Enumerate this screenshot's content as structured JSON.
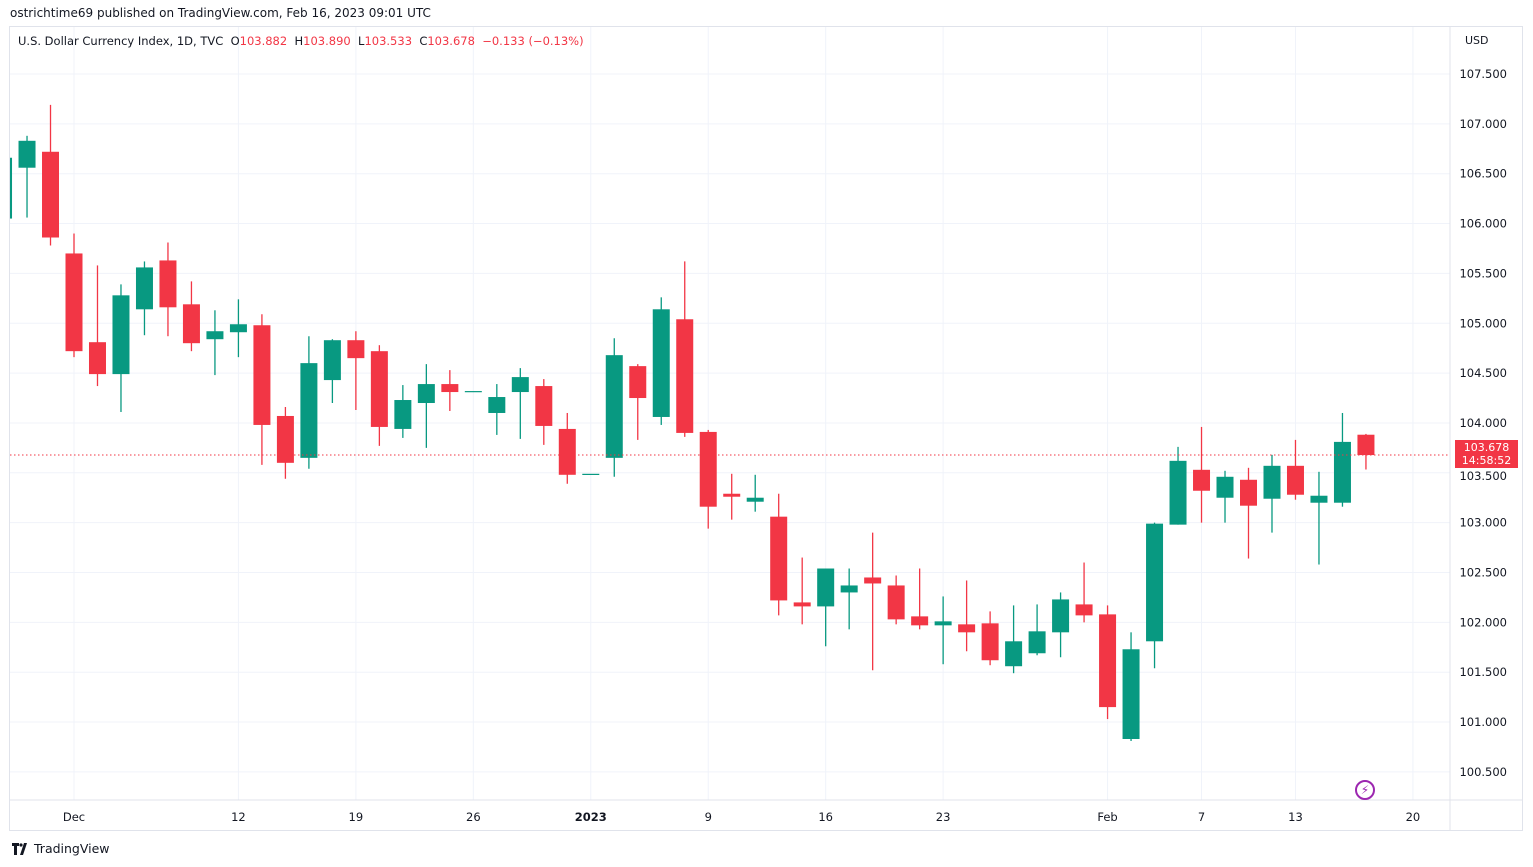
{
  "header": {
    "published": "ostrichtime69 published on TradingView.com, Feb 16, 2023 09:01 UTC"
  },
  "legend": {
    "symbol": "U.S. Dollar Currency Index, 1D, TVC",
    "o_label": "O",
    "o": "103.882",
    "h_label": "H",
    "h": "103.890",
    "l_label": "L",
    "l": "103.533",
    "c_label": "C",
    "c": "103.678",
    "change": "−0.133 (−0.13%)"
  },
  "currency": "USD",
  "last_price": {
    "value": "103.678",
    "countdown": "14:58:52"
  },
  "footer": {
    "logo_text": "TradingView"
  },
  "colors": {
    "up": "#089981",
    "down": "#F23645",
    "grid": "#f0f3fa",
    "alert": "#9c27b0"
  },
  "icons": {
    "alert": "lightning-icon",
    "logo": "tradingview-logo-icon"
  },
  "chart_data": {
    "type": "candlestick",
    "ylim": [
      100.3,
      107.75
    ],
    "y_ticks": [
      "107.500",
      "107.000",
      "106.500",
      "106.000",
      "105.500",
      "105.000",
      "104.500",
      "104.000",
      "103.500",
      "103.000",
      "102.500",
      "102.000",
      "101.500",
      "101.000",
      "100.500"
    ],
    "x_ticks": [
      {
        "label": "Dec",
        "day": 3,
        "bold": false
      },
      {
        "label": "12",
        "day": 10,
        "bold": false
      },
      {
        "label": "19",
        "day": 15,
        "bold": false
      },
      {
        "label": "26",
        "day": 20,
        "bold": false
      },
      {
        "label": "2023",
        "day": 25,
        "bold": true
      },
      {
        "label": "9",
        "day": 30,
        "bold": false
      },
      {
        "label": "16",
        "day": 35,
        "bold": false
      },
      {
        "label": "23",
        "day": 40,
        "bold": false
      },
      {
        "label": "Feb",
        "day": 47,
        "bold": false
      },
      {
        "label": "7",
        "day": 51,
        "bold": false
      },
      {
        "label": "13",
        "day": 55,
        "bold": false
      },
      {
        "label": "20",
        "day": 60,
        "bold": false
      }
    ],
    "columns": [
      "date",
      "open",
      "high",
      "low",
      "close"
    ],
    "candles": [
      [
        "2022-11-28",
        106.05,
        106.7,
        106.05,
        106.66
      ],
      [
        "2022-11-29",
        106.56,
        106.88,
        106.06,
        106.83
      ],
      [
        "2022-11-30",
        106.72,
        107.19,
        105.78,
        105.86
      ],
      [
        "2022-12-01",
        105.7,
        105.9,
        104.66,
        104.72
      ],
      [
        "2022-12-02",
        104.81,
        105.58,
        104.37,
        104.49
      ],
      [
        "2022-12-05",
        104.49,
        105.39,
        104.11,
        105.28
      ],
      [
        "2022-12-06",
        105.14,
        105.62,
        104.88,
        105.56
      ],
      [
        "2022-12-07",
        105.63,
        105.81,
        104.87,
        105.16
      ],
      [
        "2022-12-08",
        105.19,
        105.42,
        104.72,
        104.8
      ],
      [
        "2022-12-09",
        104.84,
        105.13,
        104.48,
        104.92
      ],
      [
        "2022-12-12",
        104.91,
        105.24,
        104.66,
        104.99
      ],
      [
        "2022-12-13",
        104.98,
        105.09,
        103.58,
        103.98
      ],
      [
        "2022-12-14",
        104.07,
        104.16,
        103.44,
        103.6
      ],
      [
        "2022-12-15",
        103.65,
        104.87,
        103.54,
        104.6
      ],
      [
        "2022-12-16",
        104.43,
        104.84,
        104.2,
        104.83
      ],
      [
        "2022-12-19",
        104.83,
        104.92,
        104.13,
        104.65
      ],
      [
        "2022-12-20",
        104.72,
        104.78,
        103.77,
        103.96
      ],
      [
        "2022-12-21",
        103.94,
        104.38,
        103.85,
        104.23
      ],
      [
        "2022-12-22",
        104.2,
        104.59,
        103.75,
        104.39
      ],
      [
        "2022-12-23",
        104.39,
        104.53,
        104.12,
        104.31
      ],
      [
        "2022-12-26",
        104.32,
        104.32,
        104.32,
        104.32
      ],
      [
        "2022-12-27",
        104.1,
        104.39,
        103.88,
        104.26
      ],
      [
        "2022-12-28",
        104.31,
        104.55,
        103.84,
        104.46
      ],
      [
        "2022-12-29",
        104.37,
        104.44,
        103.78,
        103.97
      ],
      [
        "2022-12-30",
        103.94,
        104.1,
        103.39,
        103.48
      ],
      [
        "2023-01-02",
        103.49,
        103.49,
        103.49,
        103.49
      ],
      [
        "2023-01-03",
        103.65,
        104.85,
        103.46,
        104.68
      ],
      [
        "2023-01-04",
        104.57,
        104.59,
        103.83,
        104.25
      ],
      [
        "2023-01-05",
        104.06,
        105.26,
        103.98,
        105.14
      ],
      [
        "2023-01-06",
        105.04,
        105.62,
        103.86,
        103.9
      ],
      [
        "2023-01-09",
        103.91,
        103.93,
        102.94,
        103.16
      ],
      [
        "2023-01-10",
        103.29,
        103.49,
        103.03,
        103.26
      ],
      [
        "2023-01-11",
        103.21,
        103.48,
        103.11,
        103.25
      ],
      [
        "2023-01-12",
        103.06,
        103.29,
        102.07,
        102.22
      ],
      [
        "2023-01-13",
        102.2,
        102.65,
        101.98,
        102.16
      ],
      [
        "2023-01-16",
        102.16,
        102.54,
        101.76,
        102.54
      ],
      [
        "2023-01-17",
        102.3,
        102.54,
        101.93,
        102.37
      ],
      [
        "2023-01-18",
        102.45,
        102.9,
        101.52,
        102.39
      ],
      [
        "2023-01-19",
        102.37,
        102.47,
        101.98,
        102.03
      ],
      [
        "2023-01-20",
        102.06,
        102.54,
        101.93,
        101.97
      ],
      [
        "2023-01-23",
        101.97,
        102.26,
        101.58,
        102.01
      ],
      [
        "2023-01-24",
        101.98,
        102.42,
        101.71,
        101.9
      ],
      [
        "2023-01-25",
        101.99,
        102.11,
        101.57,
        101.62
      ],
      [
        "2023-01-26",
        101.56,
        102.17,
        101.49,
        101.81
      ],
      [
        "2023-01-27",
        101.69,
        102.18,
        101.67,
        101.91
      ],
      [
        "2023-01-30",
        101.9,
        102.3,
        101.65,
        102.23
      ],
      [
        "2023-01-31",
        102.18,
        102.6,
        102.0,
        102.07
      ],
      [
        "2023-02-01",
        102.08,
        102.17,
        101.03,
        101.15
      ],
      [
        "2023-02-02",
        100.83,
        101.9,
        100.81,
        101.73
      ],
      [
        "2023-02-03",
        101.81,
        103.0,
        101.54,
        102.99
      ],
      [
        "2023-02-06",
        102.98,
        103.76,
        102.98,
        103.62
      ],
      [
        "2023-02-07",
        103.53,
        103.96,
        103.0,
        103.32
      ],
      [
        "2023-02-08",
        103.25,
        103.52,
        103.0,
        103.46
      ],
      [
        "2023-02-09",
        103.43,
        103.55,
        102.64,
        103.17
      ],
      [
        "2023-02-10",
        103.24,
        103.68,
        102.9,
        103.57
      ],
      [
        "2023-02-13",
        103.57,
        103.83,
        103.23,
        103.28
      ],
      [
        "2023-02-14",
        103.2,
        103.51,
        102.58,
        103.27
      ],
      [
        "2023-02-15",
        103.2,
        104.1,
        103.16,
        103.81
      ],
      [
        "2023-02-16",
        103.882,
        103.89,
        103.533,
        103.678
      ]
    ]
  }
}
